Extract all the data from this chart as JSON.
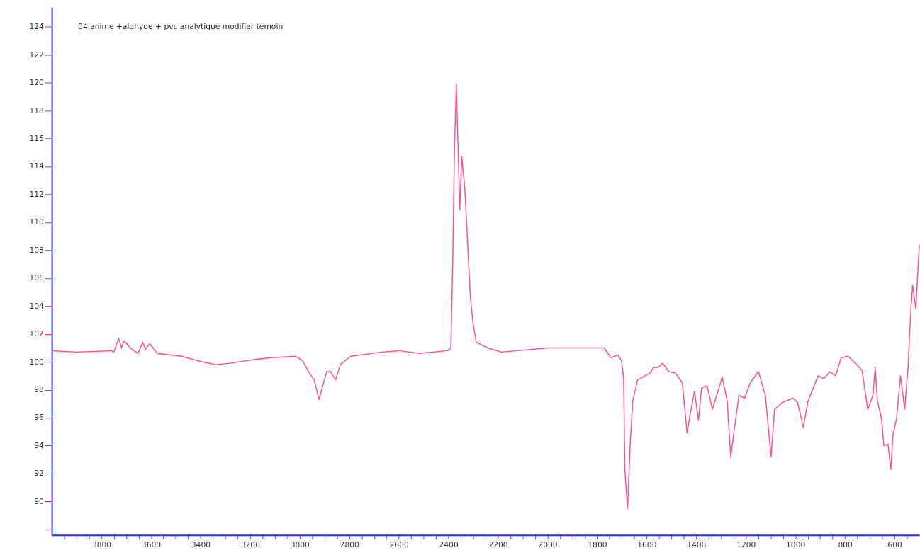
{
  "chart_data": {
    "type": "line",
    "title": "04 anime +aldhyde + pvc analytique modifier temoin",
    "x": [
      4000,
      3900,
      3760,
      3750,
      3730,
      3719,
      3708,
      3677,
      3652,
      3633,
      3622,
      3605,
      3574,
      3477,
      3393,
      3337,
      3281,
      3170,
      3114,
      3017,
      2989,
      2961,
      2941,
      2922,
      2891,
      2875,
      2855,
      2836,
      2794,
      2668,
      2600,
      2515,
      2403,
      2390,
      2382,
      2376,
      2368,
      2354,
      2346,
      2334,
      2311,
      2301,
      2287,
      2242,
      2186,
      1999,
      1888,
      1832,
      1772,
      1744,
      1716,
      1702,
      1693,
      1688,
      1677,
      1667,
      1656,
      1637,
      1586,
      1572,
      1553,
      1535,
      1511,
      1484,
      1456,
      1437,
      1423,
      1407,
      1391,
      1379,
      1356,
      1335,
      1295,
      1275,
      1261,
      1228,
      1205,
      1182,
      1149,
      1121,
      1098,
      1084,
      1052,
      1010,
      991,
      968,
      949,
      908,
      885,
      861,
      838,
      815,
      787,
      764,
      731,
      708,
      687,
      678,
      669,
      652,
      643,
      626,
      615,
      606,
      592,
      576,
      559,
      545,
      540,
      533,
      527,
      514,
      500
    ],
    "series": [
      {
        "color": "#ff4f8b",
        "values": [
          100.8,
          100.7,
          100.8,
          100.7,
          101.7,
          101.0,
          101.5,
          100.9,
          100.6,
          101.4,
          100.9,
          101.3,
          100.6,
          100.4,
          100.0,
          99.8,
          99.9,
          100.2,
          100.3,
          100.4,
          100.1,
          99.2,
          98.7,
          97.3,
          99.3,
          99.3,
          98.7,
          99.8,
          100.4,
          100.7,
          100.8,
          100.6,
          100.8,
          101.0,
          107.4,
          114.9,
          119.9,
          110.9,
          114.7,
          112.5,
          104.6,
          102.8,
          101.4,
          101.0,
          100.7,
          101.0,
          101.0,
          101.0,
          101.0,
          100.3,
          100.5,
          100.1,
          98.9,
          92.3,
          89.5,
          93.9,
          97.2,
          98.7,
          99.2,
          99.6,
          99.6,
          99.9,
          99.3,
          99.2,
          98.5,
          94.9,
          96.4,
          97.9,
          95.8,
          98.1,
          98.3,
          96.6,
          98.9,
          97.2,
          93.2,
          97.6,
          97.4,
          98.5,
          99.3,
          97.6,
          93.2,
          96.6,
          97.1,
          97.4,
          97.1,
          95.3,
          97.2,
          99.0,
          98.8,
          99.3,
          99.0,
          100.3,
          100.4,
          100.0,
          99.4,
          96.6,
          97.6,
          99.6,
          97.2,
          95.9,
          94.0,
          94.1,
          92.3,
          94.8,
          95.9,
          99.0,
          96.6,
          99.7,
          101.7,
          104.0,
          105.5,
          103.8,
          108.4
        ]
      }
    ],
    "xlim": [
      4000,
      500
    ],
    "xticks": [
      {
        "value": 3950,
        "label": null
      },
      {
        "value": 3900,
        "label": null
      },
      {
        "value": 3850,
        "label": null
      },
      3800,
      {
        "value": 3750,
        "label": null
      },
      {
        "value": 3700,
        "label": null
      },
      {
        "value": 3650,
        "label": null
      },
      3600,
      {
        "value": 3550,
        "label": null
      },
      {
        "value": 3500,
        "label": null
      },
      {
        "value": 3450,
        "label": null
      },
      3400,
      {
        "value": 3350,
        "label": null
      },
      {
        "value": 3300,
        "label": null
      },
      {
        "value": 3250,
        "label": null
      },
      3200,
      {
        "value": 3150,
        "label": null
      },
      {
        "value": 3100,
        "label": null
      },
      {
        "value": 3050,
        "label": null
      },
      3000,
      {
        "value": 2950,
        "label": null
      },
      {
        "value": 2900,
        "label": null
      },
      {
        "value": 2850,
        "label": null
      },
      2800,
      {
        "value": 2750,
        "label": null
      },
      {
        "value": 2700,
        "label": null
      },
      {
        "value": 2650,
        "label": null
      },
      2600,
      {
        "value": 2550,
        "label": null
      },
      {
        "value": 2500,
        "label": null
      },
      {
        "value": 2450,
        "label": null
      },
      2400,
      {
        "value": 2350,
        "label": null
      },
      {
        "value": 2300,
        "label": null
      },
      {
        "value": 2250,
        "label": null
      },
      2200,
      {
        "value": 2150,
        "label": null
      },
      {
        "value": 2100,
        "label": null
      },
      {
        "value": 2050,
        "label": null
      },
      2000,
      {
        "value": 1950,
        "label": null
      },
      {
        "value": 1900,
        "label": null
      },
      {
        "value": 1850,
        "label": null
      },
      1800,
      {
        "value": 1750,
        "label": null
      },
      {
        "value": 1700,
        "label": null
      },
      {
        "value": 1650,
        "label": null
      },
      1600,
      {
        "value": 1550,
        "label": null
      },
      {
        "value": 1500,
        "label": null
      },
      {
        "value": 1450,
        "label": null
      },
      1400,
      {
        "value": 1350,
        "label": null
      },
      {
        "value": 1300,
        "label": null
      },
      {
        "value": 1250,
        "label": null
      },
      1200,
      {
        "value": 1150,
        "label": null
      },
      {
        "value": 1100,
        "label": null
      },
      {
        "value": 1050,
        "label": null
      },
      1000,
      {
        "value": 950,
        "label": null
      },
      {
        "value": 900,
        "label": null
      },
      {
        "value": 850,
        "label": null
      },
      800,
      {
        "value": 750,
        "label": null
      },
      {
        "value": 700,
        "label": null
      },
      {
        "value": 650,
        "label": null
      },
      600,
      {
        "value": 550,
        "label": null
      }
    ],
    "ylim": [
      87.6,
      125.4
    ],
    "yticks": [
      {
        "value": 88,
        "label": null
      },
      90,
      92,
      94,
      96,
      98,
      100,
      102,
      104,
      106,
      108,
      110,
      112,
      114,
      116,
      118,
      120,
      122,
      124
    ],
    "grid": false,
    "legend": false,
    "marker": "none",
    "line_style": "solid"
  }
}
